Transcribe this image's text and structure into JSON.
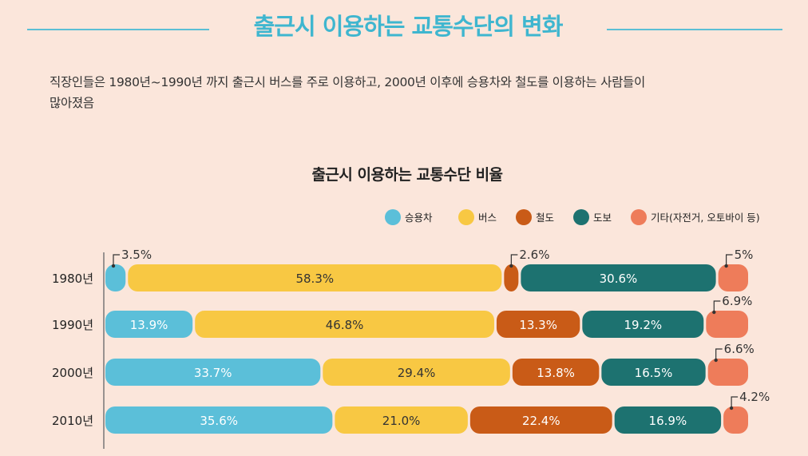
{
  "page": {
    "title": "출근시 이용하는 교통수단의 변화",
    "intro_line1": "직장인들은 1980년~1990년 까지 출근시 버스를 주로 이용하고, 2000년 이후에 승용차와 철도를 이용하는 사람들이",
    "intro_line2": "많아졌음"
  },
  "colors": {
    "accent": "#5bbfd5",
    "title": "#3fb6cf",
    "background": "#fbe6db"
  },
  "chart_data": {
    "type": "bar",
    "orientation": "horizontal",
    "stacked": true,
    "title": "출근시 이용하는 교통수단 비율",
    "xlabel": "",
    "ylabel": "",
    "legend_position": "top-right",
    "grid": false,
    "categories": [
      "1980년",
      "1990년",
      "2000년",
      "2010년"
    ],
    "series": [
      {
        "name": "승용차",
        "color": "#5bbfd9",
        "values": [
          3.5,
          13.9,
          33.7,
          35.6
        ],
        "labels": [
          "3.5%",
          "13.9%",
          "33.7%",
          "35.6%"
        ]
      },
      {
        "name": "버스",
        "color": "#f8c843",
        "values": [
          58.3,
          46.8,
          29.4,
          21.0
        ],
        "labels": [
          "58.3%",
          "46.8%",
          "29.4%",
          "21.0%"
        ]
      },
      {
        "name": "철도",
        "color": "#c95b17",
        "values": [
          2.6,
          13.3,
          13.8,
          22.4
        ],
        "labels": [
          "2.6%",
          "13.3%",
          "13.8%",
          "22.4%"
        ]
      },
      {
        "name": "도보",
        "color": "#1d7270",
        "values": [
          30.6,
          19.2,
          16.5,
          16.9
        ],
        "labels": [
          "30.6%",
          "19.2%",
          "16.5%",
          "16.9%"
        ]
      },
      {
        "name": "기타(자전거, 오토바이 등)",
        "color": "#ee7c5a",
        "values": [
          5,
          6.9,
          6.6,
          4.2
        ],
        "labels": [
          "5%",
          "6.9%",
          "6.6%",
          "4.2%"
        ]
      }
    ]
  }
}
